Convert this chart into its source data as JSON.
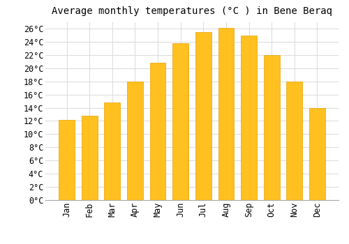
{
  "title": "Average monthly temperatures (°C ) in Bene Beraq",
  "months": [
    "Jan",
    "Feb",
    "Mar",
    "Apr",
    "May",
    "Jun",
    "Jul",
    "Aug",
    "Sep",
    "Oct",
    "Nov",
    "Dec"
  ],
  "values": [
    12.1,
    12.8,
    14.8,
    18.0,
    20.8,
    23.8,
    25.5,
    26.1,
    24.9,
    22.0,
    18.0,
    13.9
  ],
  "bar_color": "#FFC020",
  "bar_edge_color": "#E8A000",
  "background_color": "#FFFFFF",
  "grid_color": "#DDDDDD",
  "ylim": [
    0,
    27
  ],
  "ytick_step": 2,
  "title_fontsize": 10,
  "tick_fontsize": 8.5,
  "font_family": "monospace"
}
